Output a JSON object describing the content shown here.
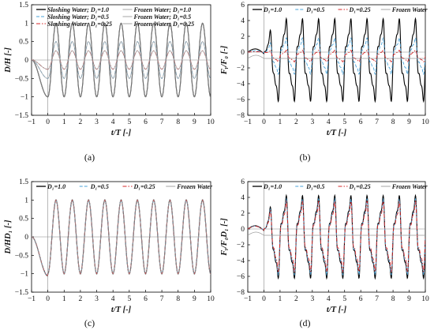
{
  "colors": {
    "d1": "#000000",
    "d05": "#4aa3d9",
    "d025": "#d62728",
    "frozen": "#9a9a9a"
  },
  "chart_data": [
    {
      "id": "a",
      "type": "line",
      "caption": "(a)",
      "xlabel": "t/T [-]",
      "ylabel": "D/H [-]",
      "xlim": [
        -1,
        10
      ],
      "ylim": [
        -1.5,
        1.5
      ],
      "xticks": [
        -1,
        0,
        1,
        2,
        3,
        4,
        5,
        6,
        7,
        8,
        9,
        10
      ],
      "yticks": [
        -1.5,
        -1,
        -0.5,
        0,
        0.5,
        1,
        1.5
      ],
      "legend": {
        "placement": "top",
        "columns": 2
      },
      "legend_labels": [
        "Sloshing Water; D₁=1.0",
        "Frozen Water; D₁=1.0",
        "Sloshing Water; D₁=0.5",
        "Frozen Water; D₁=0.5",
        "Sloshing Water; D₁=0.25",
        "Frozen Water; D₁=0.25"
      ],
      "series": [
        {
          "name": "Sloshing Water; D₁=1.0",
          "style": "solid",
          "color_key": "d1",
          "amplitude": 1.0,
          "initial_dip": -1.0
        },
        {
          "name": "Frozen Water; D₁=1.0",
          "style": "solid-thin",
          "color_key": "frozen",
          "amplitude": 1.0,
          "initial_dip": -1.0
        },
        {
          "name": "Sloshing Water; D₁=0.5",
          "style": "dashed",
          "color_key": "d05",
          "amplitude": 0.5,
          "initial_dip": -0.5
        },
        {
          "name": "Frozen Water; D₁=0.5",
          "style": "solid-thin",
          "color_key": "frozen",
          "amplitude": 0.5,
          "initial_dip": -0.5
        },
        {
          "name": "Sloshing Water; D₁=0.25",
          "style": "dashdot",
          "color_key": "d025",
          "amplitude": 0.25,
          "initial_dip": -0.25
        },
        {
          "name": "Frozen Water; D₁=0.25",
          "style": "solid-thin",
          "color_key": "frozen",
          "amplitude": 0.25,
          "initial_dip": -0.25
        }
      ]
    },
    {
      "id": "b",
      "type": "line",
      "caption": "(b)",
      "xlabel": "t/T [-]",
      "ylabel": "Fᵧ/F₀ [-]",
      "xlim": [
        -1,
        10
      ],
      "ylim": [
        -8,
        6
      ],
      "xticks": [
        -1,
        0,
        1,
        2,
        3,
        4,
        5,
        6,
        7,
        8,
        9,
        10
      ],
      "yticks": [
        -8,
        -6,
        -4,
        -2,
        0,
        2,
        4,
        6
      ],
      "legend": {
        "placement": "top",
        "columns": 4
      },
      "legend_labels": [
        "D₁=1.0",
        "D₁=0.5",
        "D₁=0.25",
        "Frozen Water"
      ],
      "series": [
        {
          "name": "D₁=1.0",
          "style": "solid",
          "color_key": "d1",
          "peak": 4.0,
          "trough": -6.0
        },
        {
          "name": "D₁=0.5",
          "style": "dashed",
          "color_key": "d05",
          "peak": 1.7,
          "trough": -2.7
        },
        {
          "name": "D₁=0.25",
          "style": "dashdot",
          "color_key": "d025",
          "peak": 0.2,
          "trough": -1.2
        },
        {
          "name": "Frozen Water",
          "style": "solid-thin",
          "color_key": "frozen",
          "peak": -0.8,
          "trough": -0.8
        }
      ]
    },
    {
      "id": "c",
      "type": "line",
      "caption": "(c)",
      "xlabel": "t/T [-]",
      "ylabel": "D/HD₁ [-]",
      "xlim": [
        -1,
        10
      ],
      "ylim": [
        -1.5,
        1.5
      ],
      "xticks": [
        -1,
        0,
        1,
        2,
        3,
        4,
        5,
        6,
        7,
        8,
        9,
        10
      ],
      "yticks": [
        -1.5,
        -1,
        -0.5,
        0,
        0.5,
        1,
        1.5
      ],
      "legend": {
        "placement": "top",
        "columns": 4
      },
      "legend_labels": [
        "D₁=1.0",
        "D₁=0.5",
        "D₁=0.25",
        "Frozen Water"
      ],
      "series": [
        {
          "name": "D₁=1.0",
          "style": "solid",
          "color_key": "d1",
          "amplitude": 1.0
        },
        {
          "name": "D₁=0.5",
          "style": "dashed",
          "color_key": "d05",
          "amplitude": 1.0
        },
        {
          "name": "D₁=0.25",
          "style": "dashdot",
          "color_key": "d025",
          "amplitude": 1.0
        },
        {
          "name": "Frozen Water",
          "style": "solid-thin",
          "color_key": "frozen",
          "amplitude": 1.02
        }
      ]
    },
    {
      "id": "d",
      "type": "line",
      "caption": "(d)",
      "xlabel": "t/T [-]",
      "ylabel": "Fᵧ/F₀D₁ [-]",
      "xlim": [
        -1,
        10
      ],
      "ylim": [
        -8,
        6
      ],
      "xticks": [
        -1,
        0,
        1,
        2,
        3,
        4,
        5,
        6,
        7,
        8,
        9,
        10
      ],
      "yticks": [
        -8,
        -6,
        -4,
        -2,
        0,
        2,
        4,
        6
      ],
      "legend": {
        "placement": "top",
        "columns": 4
      },
      "legend_labels": [
        "D₁=1.0",
        "D₁=0.5",
        "D₁=0.25",
        "Frozen Water"
      ],
      "series": [
        {
          "name": "D₁=1.0",
          "style": "solid",
          "color_key": "d1",
          "peak": 4.0,
          "trough": -6.0
        },
        {
          "name": "D₁=0.5",
          "style": "dashed",
          "color_key": "d05",
          "peak": 3.6,
          "trough": -5.6
        },
        {
          "name": "D₁=0.25",
          "style": "dashdot",
          "color_key": "d025",
          "peak": 3.3,
          "trough": -5.2
        },
        {
          "name": "Frozen Water",
          "style": "solid-thin",
          "color_key": "frozen",
          "peak": -0.8,
          "trough": -0.8
        }
      ]
    }
  ]
}
